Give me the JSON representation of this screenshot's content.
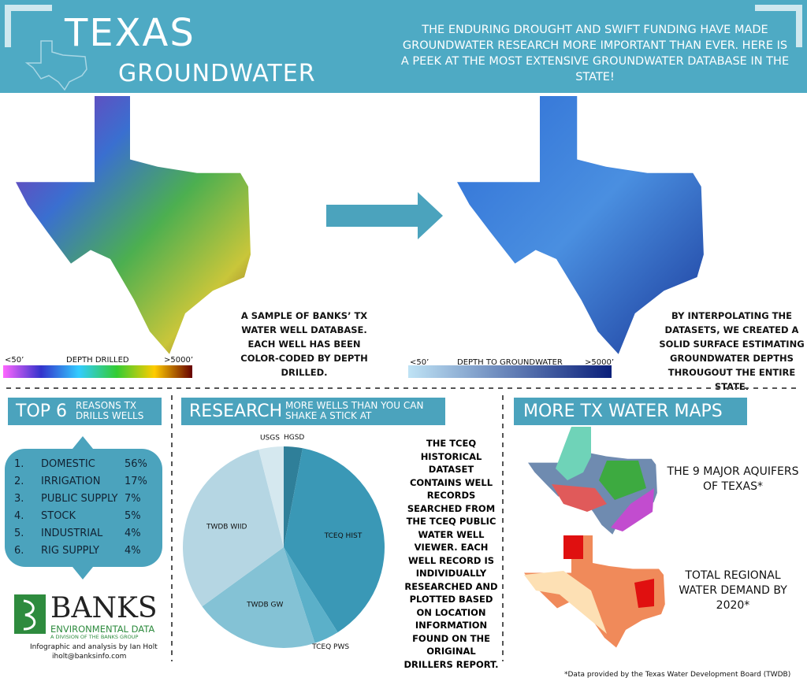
{
  "header": {
    "title": "TEXAS",
    "subtitle": "GROUNDWATER",
    "intro": "THE ENDURING DROUGHT AND SWIFT FUNDING HAVE MADE GROUNDWATER RESEARCH MORE IMPORTANT THAN EVER. HERE IS A PEEK AT THE MOST EXTENSIVE GROUNDWATER DATABASE IN THE STATE!"
  },
  "maps": {
    "left": {
      "caption": "A SAMPLE OF BANKS’ TX WATER WELL DATABASE. EACH WELL HAS BEEN COLOR-CODED BY DEPTH DRILLED.",
      "legend": {
        "min": "<50’",
        "label": "DEPTH DRILLED",
        "max": ">5000’"
      }
    },
    "right": {
      "caption": "BY INTERPOLATING THE DATASETS, WE CREATED A SOLID SURFACE ESTIMATING GROUNDWATER DEPTHS THROUGOUT THE ENTIRE STATE.",
      "legend": {
        "min": "<50’",
        "label": "DEPTH TO GROUNDWATER",
        "max": ">5000’"
      }
    }
  },
  "reasons": {
    "title": "TOP 6",
    "subtitle": "REASONS TX DRILLS WELLS",
    "rows": [
      [
        "1.",
        "DOMESTIC",
        "56%"
      ],
      [
        "2.",
        "IRRIGATION",
        "17%"
      ],
      [
        "3.",
        "PUBLIC SUPPLY",
        "7%"
      ],
      [
        "4.",
        "STOCK",
        "5%"
      ],
      [
        "5.",
        "INDUSTRIAL",
        "4%"
      ],
      [
        "6.",
        "RIG SUPPLY",
        "4%"
      ]
    ]
  },
  "research": {
    "title": "RESEARCH",
    "subtitle": "MORE WELLS THAN YOU CAN SHAKE A STICK AT",
    "description": "THE TCEQ HISTORICAL DATASET CONTAINS WELL RECORDS SEARCHED FROM THE TCEQ PUBLIC WATER WELL VIEWER. EACH WELL RECORD IS INDIVIDUALLY RESEARCHED AND PLOTTED BASED ON LOCATION INFORMATION FOUND ON THE ORIGINAL DRILLERS REPORT."
  },
  "chart_data": {
    "type": "pie",
    "categories": [
      "HGSD",
      "TCEQ HIST",
      "TCEQ PWS",
      "TWDB GW",
      "TWDB WIID",
      "USGS"
    ],
    "values": [
      3,
      38,
      4,
      20,
      31,
      4
    ],
    "colors": [
      "#2f7f99",
      "#3a98b6",
      "#5bb0c9",
      "#84c2d5",
      "#b5d6e3",
      "#d5e8ef"
    ]
  },
  "more_maps": {
    "title": "MORE TX WATER MAPS",
    "items": [
      "THE 9 MAJOR AQUIFERS OF TEXAS*",
      "TOTAL REGIONAL WATER DEMAND BY 2020*"
    ]
  },
  "footer": {
    "logo": "BANKS",
    "logo_sub": "ENVIRONMENTAL DATA",
    "logo_tag": "A DIVISION OF THE BANKS GROUP",
    "credit": "Infographic and analysis by Ian Holt",
    "email": "iholt@banksinfo.com",
    "note": "*Data provided by the Texas Water Development Board (TWDB)"
  }
}
